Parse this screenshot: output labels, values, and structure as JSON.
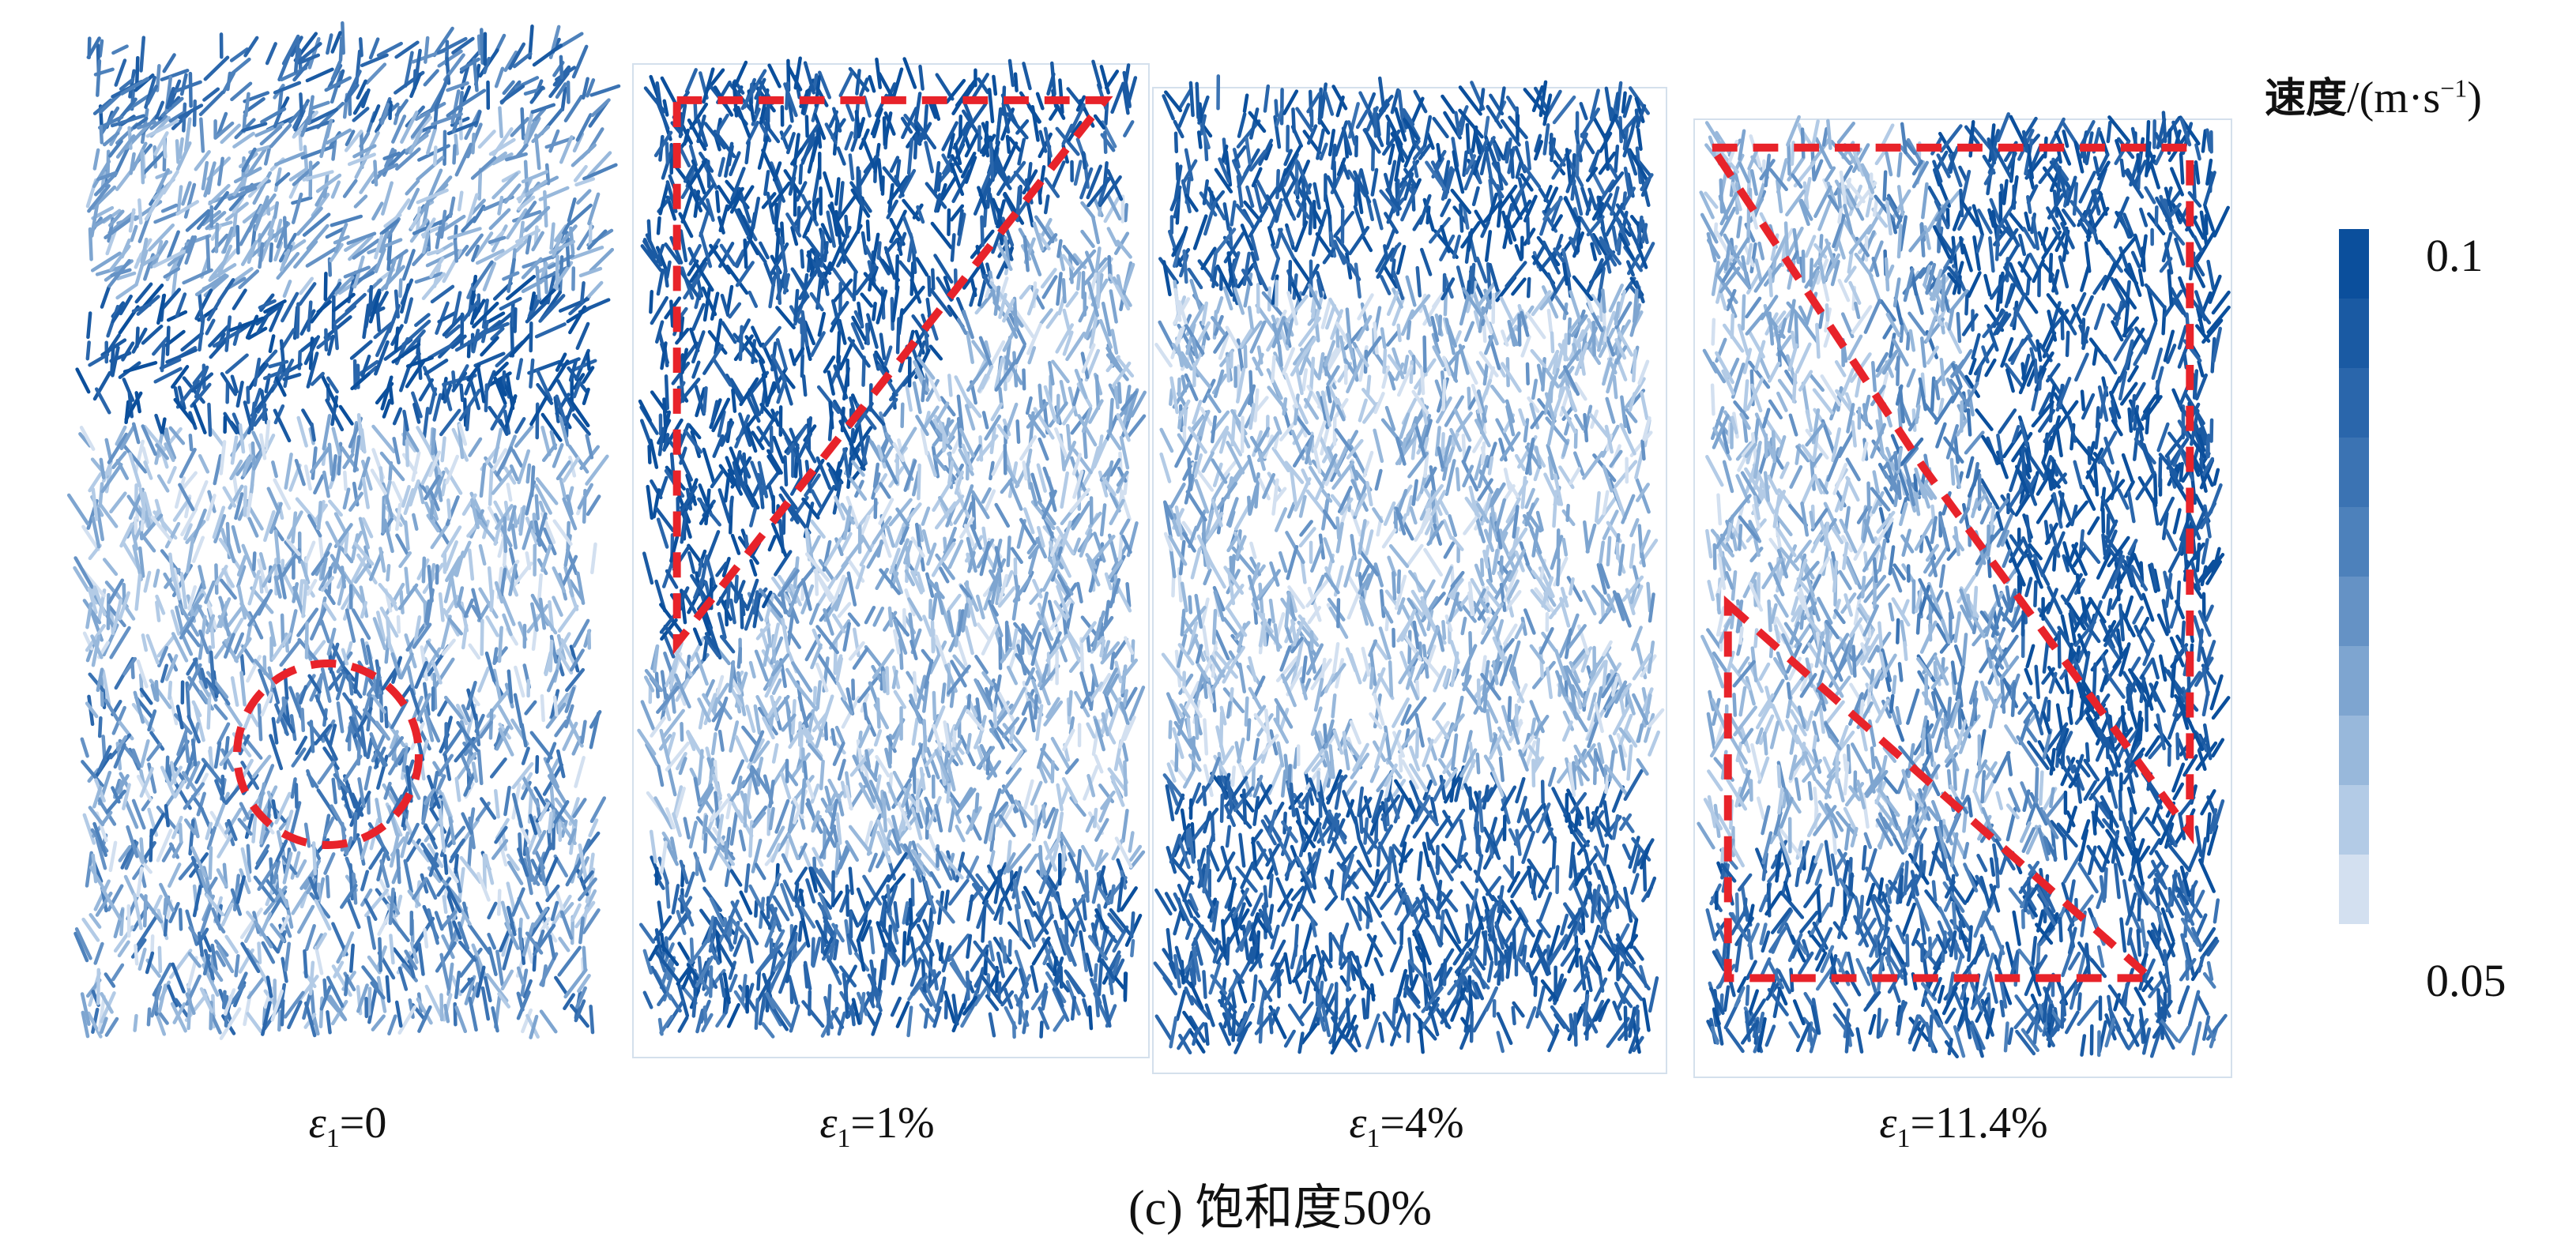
{
  "figure_caption": "(c) 饱和度50%",
  "legend": {
    "title_cn": "速度",
    "title_unit_prefix": "/(m·s",
    "title_unit_sup": "−1",
    "title_unit_suffix": ")",
    "max_label": "0.1",
    "min_label": "0.05",
    "colors": [
      "#0b4f9c",
      "#1a5aa3",
      "#2a66ab",
      "#3b73b3",
      "#4d81bb",
      "#6592c5",
      "#7ea5d0",
      "#98b8db",
      "#b3cbe6",
      "#d3e0f0"
    ]
  },
  "panels": [
    {
      "symbol": "ε",
      "subscript": "1",
      "value": "=0"
    },
    {
      "symbol": "ε",
      "subscript": "1",
      "value": "=1%"
    },
    {
      "symbol": "ε",
      "subscript": "1",
      "value": "=4%"
    },
    {
      "symbol": "ε",
      "subscript": "1",
      "value": "=11.4%"
    }
  ]
}
